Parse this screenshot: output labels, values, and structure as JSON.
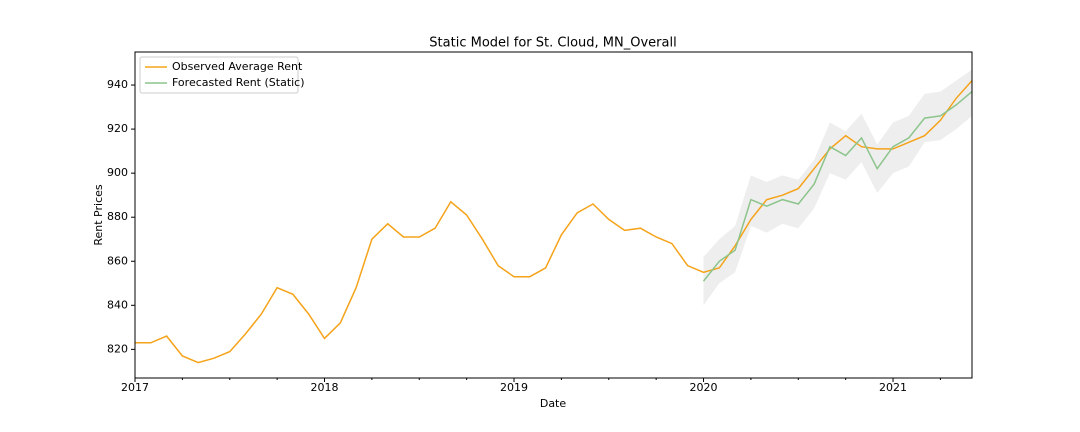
{
  "chart_data": {
    "type": "line",
    "title": "Static Model for St. Cloud, MN_Overall",
    "x_label": "Date",
    "y_label": "Rent Prices",
    "categories": [
      "2017",
      null,
      null,
      null,
      null,
      null,
      null,
      null,
      null,
      null,
      null,
      null,
      "2018",
      null,
      null,
      null,
      null,
      null,
      null,
      null,
      null,
      null,
      null,
      null,
      "2019",
      null,
      null,
      null,
      null,
      null,
      null,
      null,
      null,
      null,
      null,
      null,
      "2020",
      null,
      null,
      null,
      null,
      null,
      null,
      null,
      null,
      null,
      null,
      null,
      "2021",
      null,
      null,
      null,
      null,
      null
    ],
    "series": [
      {
        "name": "Observed Average Rent",
        "color": "#f5a31a",
        "values": [
          823,
          823,
          826,
          817,
          814,
          816,
          819,
          827,
          836,
          848,
          845,
          836,
          825,
          832,
          848,
          870,
          877,
          871,
          871,
          875,
          887,
          881,
          870,
          858,
          853,
          853,
          857,
          872,
          882,
          886,
          879,
          874,
          875,
          871,
          868,
          858,
          855,
          857,
          867,
          879,
          888,
          890,
          893,
          902,
          911,
          917,
          912,
          911,
          911,
          914,
          917,
          924,
          934,
          942
        ]
      },
      {
        "name": "Forecasted Rent (Static)",
        "color": "#8cc48c",
        "values": [
          null,
          null,
          null,
          null,
          null,
          null,
          null,
          null,
          null,
          null,
          null,
          null,
          null,
          null,
          null,
          null,
          null,
          null,
          null,
          null,
          null,
          null,
          null,
          null,
          null,
          null,
          null,
          null,
          null,
          null,
          null,
          null,
          null,
          null,
          null,
          null,
          851,
          860,
          865,
          888,
          885,
          888,
          886,
          895,
          912,
          908,
          916,
          902,
          912,
          916,
          925,
          926,
          931,
          937
        ]
      }
    ],
    "band_lower": [
      840,
      850,
      855,
      876,
      873,
      877,
      875,
      884,
      900,
      897,
      905,
      891,
      900,
      903,
      914,
      915,
      920,
      926
    ],
    "band_upper": [
      862,
      870,
      876,
      899,
      896,
      899,
      897,
      906,
      923,
      919,
      927,
      913,
      923,
      926,
      936,
      937,
      942,
      947
    ],
    "band_start": 36,
    "band_color": "#d9d9d9",
    "ylim": [
      807,
      955
    ],
    "yticks": [
      820,
      840,
      860,
      880,
      900,
      920,
      940
    ],
    "grid": false,
    "legend": "upper left"
  }
}
